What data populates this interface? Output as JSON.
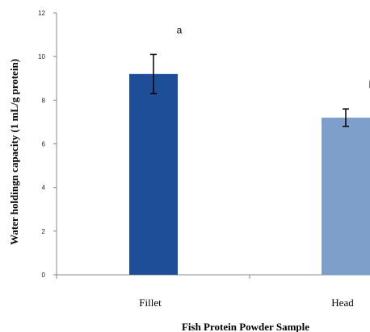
{
  "chart_data": {
    "type": "bar",
    "categories": [
      "Fillet",
      "Head"
    ],
    "values": [
      9.2,
      7.2
    ],
    "errors": [
      0.9,
      0.4
    ],
    "significance": [
      "a",
      "b"
    ],
    "colors": [
      "#1f4e99",
      "#7f9fcb"
    ],
    "xlabel": "Fish Protein Powder Sample",
    "ylabel": "Water holdingn capacity (1 mL/g protein)",
    "ylim": [
      0,
      12
    ],
    "yticks": [
      0,
      2,
      4,
      6,
      8,
      10,
      12
    ],
    "grid": false,
    "legend": "none"
  }
}
